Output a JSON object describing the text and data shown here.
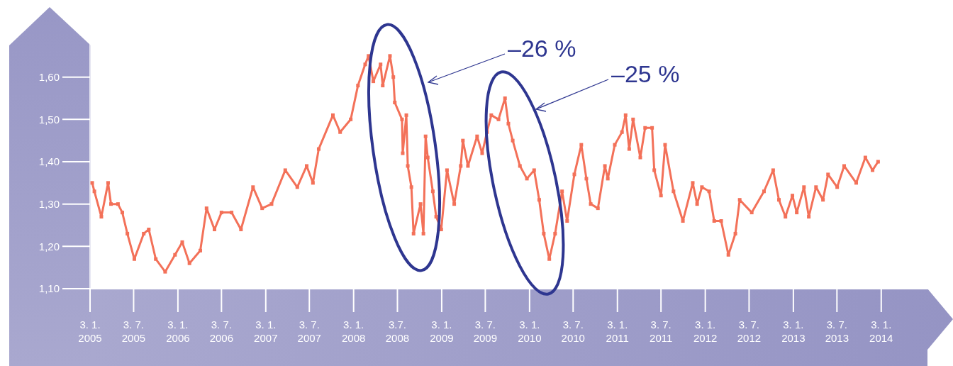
{
  "chart_data": {
    "type": "line",
    "annotations": [
      "–26 %",
      "–25 %"
    ],
    "x": [
      "2005-01-12",
      "2005-01-21",
      "2005-02-19",
      "2005-03-19",
      "2005-03-31",
      "2005-04-29",
      "2005-05-17",
      "2005-06-07",
      "2005-07-06",
      "2005-08-14",
      "2005-09-04",
      "2005-10-03",
      "2005-11-11",
      "2005-12-22",
      "2006-01-21",
      "2006-02-20",
      "2006-04-06",
      "2006-05-02",
      "2006-06-04",
      "2006-07-03",
      "2006-08-14",
      "2006-09-22",
      "2006-11-11",
      "2006-12-19",
      "2007-01-27",
      "2007-03-25",
      "2007-05-14",
      "2007-06-22",
      "2007-07-18",
      "2007-08-11",
      "2007-10-09",
      "2007-11-08",
      "2007-12-22",
      "2008-01-21",
      "2008-02-20",
      "2008-03-05",
      "2008-03-25",
      "2008-04-24",
      "2008-05-03",
      "2008-06-02",
      "2008-06-16",
      "2008-06-22",
      "2008-07-22",
      "2008-07-25",
      "2008-08-09",
      "2008-08-15",
      "2008-08-30",
      "2008-09-08",
      "2008-10-07",
      "2008-10-19",
      "2008-10-28",
      "2008-11-06",
      "2008-11-27",
      "2008-12-11",
      "2009-01-01",
      "2009-01-25",
      "2009-02-24",
      "2009-03-23",
      "2009-04-01",
      "2009-04-22",
      "2009-05-30",
      "2009-06-20",
      "2009-07-10",
      "2009-07-28",
      "2009-08-27",
      "2009-09-23",
      "2009-10-07",
      "2009-10-25",
      "2009-11-24",
      "2009-12-23",
      "2010-01-22",
      "2010-02-12",
      "2010-03-03",
      "2010-03-26",
      "2010-04-19",
      "2010-05-18",
      "2010-06-08",
      "2010-07-08",
      "2010-08-06",
      "2010-08-27",
      "2010-09-14",
      "2010-10-14",
      "2010-11-12",
      "2010-11-24",
      "2010-12-23",
      "2011-01-22",
      "2011-02-06",
      "2011-02-21",
      "2011-03-09",
      "2011-04-08",
      "2011-04-28",
      "2011-05-27",
      "2011-06-05",
      "2011-07-03",
      "2011-07-20",
      "2011-08-24",
      "2011-10-02",
      "2011-11-12",
      "2011-11-30",
      "2011-12-20",
      "2012-01-19",
      "2012-02-09",
      "2012-03-09",
      "2012-04-08",
      "2012-05-07",
      "2012-05-25",
      "2012-07-14",
      "2012-09-03",
      "2012-10-11",
      "2012-11-04",
      "2012-12-01",
      "2012-12-30",
      "2013-01-17",
      "2013-02-16",
      "2013-03-08",
      "2013-04-07",
      "2013-05-06",
      "2013-05-27",
      "2013-07-04",
      "2013-08-02",
      "2013-09-21",
      "2013-10-29",
      "2013-11-28",
      "2013-12-21"
    ],
    "series": [
      {
        "color": "#f37159",
        "values": [
          1.35,
          1.33,
          1.27,
          1.35,
          1.3,
          1.3,
          1.28,
          1.23,
          1.17,
          1.23,
          1.24,
          1.17,
          1.14,
          1.18,
          1.21,
          1.16,
          1.19,
          1.29,
          1.24,
          1.28,
          1.28,
          1.24,
          1.34,
          1.29,
          1.3,
          1.38,
          1.34,
          1.39,
          1.35,
          1.43,
          1.51,
          1.47,
          1.5,
          1.58,
          1.63,
          1.65,
          1.59,
          1.63,
          1.58,
          1.65,
          1.6,
          1.54,
          1.5,
          1.42,
          1.51,
          1.39,
          1.34,
          1.23,
          1.3,
          1.23,
          1.46,
          1.41,
          1.33,
          1.27,
          1.24,
          1.38,
          1.3,
          1.39,
          1.45,
          1.39,
          1.46,
          1.42,
          1.47,
          1.51,
          1.5,
          1.55,
          1.49,
          1.45,
          1.39,
          1.36,
          1.38,
          1.31,
          1.23,
          1.17,
          1.23,
          1.33,
          1.26,
          1.37,
          1.44,
          1.36,
          1.3,
          1.29,
          1.39,
          1.36,
          1.44,
          1.47,
          1.51,
          1.43,
          1.5,
          1.41,
          1.48,
          1.48,
          1.38,
          1.32,
          1.44,
          1.33,
          1.26,
          1.35,
          1.3,
          1.34,
          1.33,
          1.26,
          1.26,
          1.18,
          1.23,
          1.31,
          1.28,
          1.33,
          1.38,
          1.31,
          1.27,
          1.32,
          1.28,
          1.34,
          1.27,
          1.34,
          1.31,
          1.37,
          1.34,
          1.39,
          1.35,
          1.41,
          1.38,
          1.4
        ]
      }
    ],
    "xlim": [
      "2005-01-03",
      "2014-07-20"
    ],
    "xticks": [
      {
        "value": "2005-01-03",
        "label": "3. 1. 2005"
      },
      {
        "value": "2005-07-03",
        "label": "3. 7. 2005"
      },
      {
        "value": "2006-01-03",
        "label": "3. 1. 2006"
      },
      {
        "value": "2006-07-03",
        "label": "3. 7. 2006"
      },
      {
        "value": "2007-01-03",
        "label": "3. 1. 2007"
      },
      {
        "value": "2007-07-03",
        "label": "3. 7. 2007"
      },
      {
        "value": "2008-01-03",
        "label": "3. 1. 2008"
      },
      {
        "value": "2008-07-03",
        "label": "3.7. 2008"
      },
      {
        "value": "2009-01-03",
        "label": "3. 1. 2009"
      },
      {
        "value": "2009-07-03",
        "label": "3. 7. 2009"
      },
      {
        "value": "2010-01-03",
        "label": "3. 1. 2010"
      },
      {
        "value": "2010-07-03",
        "label": "3. 7. 2010"
      },
      {
        "value": "2011-01-03",
        "label": "3. 1. 2011"
      },
      {
        "value": "2011-07-03",
        "label": "3. 7. 2011"
      },
      {
        "value": "2012-01-03",
        "label": "3. 1. 2012"
      },
      {
        "value": "2012-07-03",
        "label": "3. 7. 2012"
      },
      {
        "value": "2013-01-03",
        "label": "3. 1. 2013"
      },
      {
        "value": "2013-07-03",
        "label": "3. 7. 2013"
      },
      {
        "value": "2014-01-03",
        "label": "3. 1. 2014"
      }
    ],
    "ylim": [
      1.1,
      1.7
    ],
    "yticks": [
      {
        "value": 1.1,
        "label": "1,10"
      },
      {
        "value": 1.2,
        "label": "1,20"
      },
      {
        "value": 1.3,
        "label": "1,30"
      },
      {
        "value": 1.4,
        "label": "1,40"
      },
      {
        "value": 1.5,
        "label": "1,50"
      },
      {
        "value": 1.6,
        "label": "1,60"
      }
    ],
    "grid": false,
    "marker": "square",
    "line_style": "solid"
  }
}
